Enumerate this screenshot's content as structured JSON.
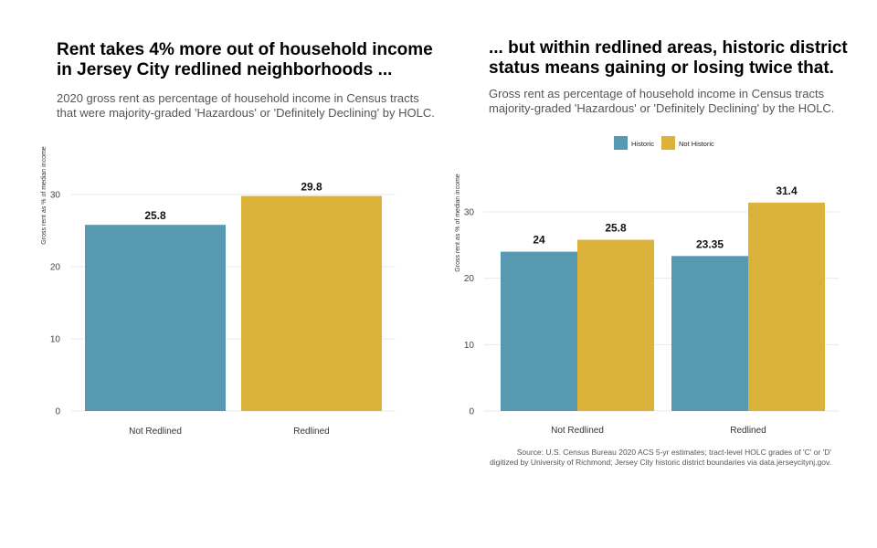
{
  "colors": {
    "historic": "#5899b2",
    "not_historic": "#dbb23a",
    "grid": "#e8e8e8"
  },
  "left": {
    "title_lines": [
      "Rent takes 4% more out of household income",
      "in Jersey City redlined neighborhoods ..."
    ],
    "subtitle_lines": [
      "2020 gross rent as percentage of household income in Census tracts",
      "that were majority-graded 'Hazardous' or 'Definitely Declining' by HOLC."
    ]
  },
  "right": {
    "title_lines": [
      "... but within redlined areas, historic district",
      "status means gaining or losing twice that."
    ],
    "subtitle_lines": [
      "Gross rent as percentage of household income in Census tracts",
      "majority-graded 'Hazardous' or 'Definitely Declining' by the HOLC."
    ]
  },
  "source_lines": [
    "Source: U.S. Census Bureau 2020 ACS 5-yr estimates; tract-level HOLC grades of 'C' or 'D'",
    "digitized by University of Richmond; Jersey City historic district boundaries via data.jerseycitynj.gov."
  ],
  "chart_data": [
    {
      "type": "bar",
      "title": "",
      "xlabel": "",
      "ylabel": "Gross rent as % of median income",
      "categories": [
        "Not Redlined",
        "Redlined"
      ],
      "values": [
        25.8,
        29.8
      ],
      "value_labels": [
        "25.8",
        "29.8"
      ],
      "bar_colors": [
        "#5899b2",
        "#dbb23a"
      ],
      "yticks": [
        0,
        10,
        20,
        30
      ],
      "ylim": [
        0,
        30
      ],
      "grid": true
    },
    {
      "type": "bar",
      "title": "",
      "xlabel": "",
      "ylabel": "Gross rent as % of median income",
      "categories": [
        "Not Redlined",
        "Redlined"
      ],
      "series": [
        {
          "name": "Historic",
          "values": [
            24,
            23.35
          ],
          "labels": [
            "24",
            "23.35"
          ],
          "color": "#5899b2"
        },
        {
          "name": "Not Historic",
          "values": [
            25.8,
            31.4
          ],
          "labels": [
            "25.8",
            "31.4"
          ],
          "color": "#dbb23a"
        }
      ],
      "yticks": [
        0,
        10,
        20,
        30
      ],
      "ylim": [
        0,
        31.4
      ],
      "legend": "top",
      "grid": true
    }
  ]
}
